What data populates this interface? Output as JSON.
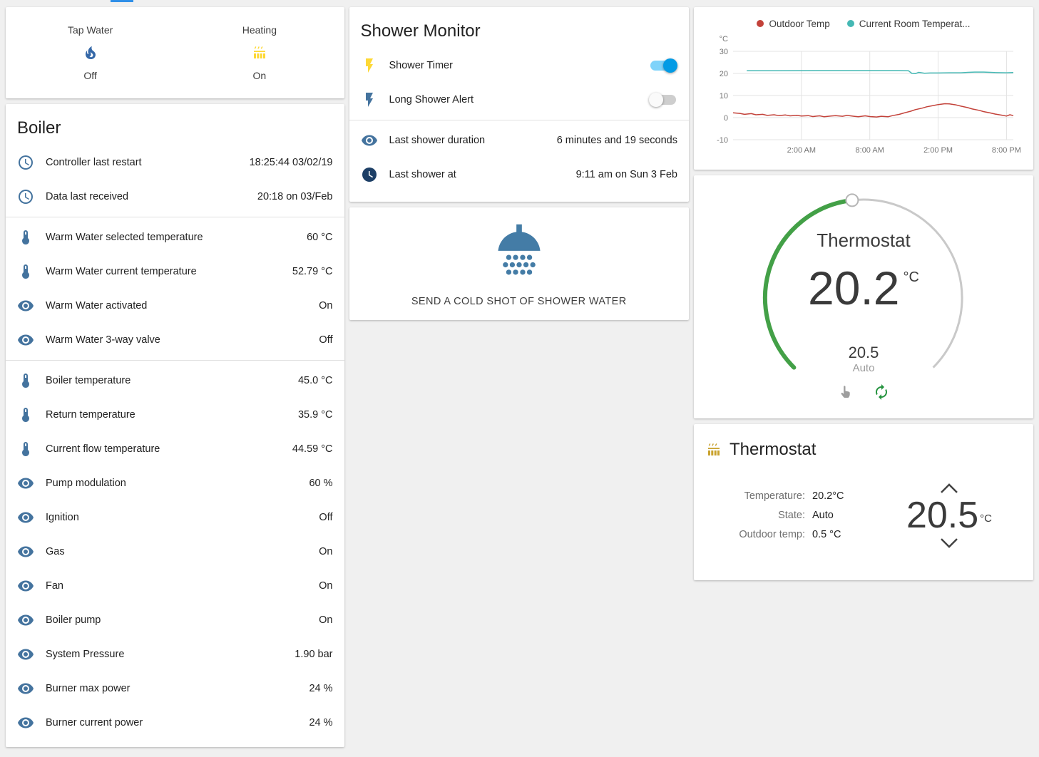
{
  "glance_card": {
    "items": [
      {
        "label": "Tap Water",
        "state": "Off"
      },
      {
        "label": "Heating",
        "state": "On"
      }
    ]
  },
  "boiler": {
    "title": "Boiler",
    "rows": [
      {
        "label": "Controller last restart",
        "value": "18:25:44 03/02/19"
      },
      {
        "label": "Data last received",
        "value": "20:18 on 03/Feb"
      },
      {
        "label": "Warm Water selected temperature",
        "value": "60 °C"
      },
      {
        "label": "Warm Water current temperature",
        "value": "52.79 °C"
      },
      {
        "label": "Warm Water activated",
        "value": "On"
      },
      {
        "label": "Warm Water 3-way valve",
        "value": "Off"
      },
      {
        "label": "Boiler temperature",
        "value": "45.0 °C"
      },
      {
        "label": "Return temperature",
        "value": "35.9 °C"
      },
      {
        "label": "Current flow temperature",
        "value": "44.59 °C"
      },
      {
        "label": "Pump modulation",
        "value": "60 %"
      },
      {
        "label": "Ignition",
        "value": "Off"
      },
      {
        "label": "Gas",
        "value": "On"
      },
      {
        "label": "Fan",
        "value": "On"
      },
      {
        "label": "Boiler pump",
        "value": "On"
      },
      {
        "label": "System Pressure",
        "value": "1.90 bar"
      },
      {
        "label": "Burner max power",
        "value": "24 %"
      },
      {
        "label": "Burner current power",
        "value": "24 %"
      }
    ]
  },
  "shower_monitor": {
    "title": "Shower Monitor",
    "toggle_rows": [
      {
        "label": "Shower Timer",
        "state": "on"
      },
      {
        "label": "Long Shower Alert",
        "state": "off"
      }
    ],
    "info_rows": [
      {
        "label": "Last shower duration",
        "value": "6 minutes and 19 seconds"
      },
      {
        "label": "Last shower at",
        "value": "9:11 am on Sun 3 Feb"
      }
    ]
  },
  "shower_action": {
    "label": "SEND A COLD SHOT OF SHOWER WATER"
  },
  "chart_data": {
    "type": "line",
    "title": "",
    "ylabel": "°C",
    "y_min": -10,
    "y_max": 30,
    "y_ticks": [
      30,
      20,
      10,
      0,
      -10
    ],
    "x_range": [
      0,
      24.6
    ],
    "x_ticks": [
      {
        "h": 6,
        "label": "2:00 AM"
      },
      {
        "h": 12,
        "label": "8:00 AM"
      },
      {
        "h": 18,
        "label": "2:00 PM"
      },
      {
        "h": 24,
        "label": "8:00 PM"
      }
    ],
    "grid": true,
    "legend_position": "top",
    "series": [
      {
        "name": "Outdoor Temp",
        "color": "#c3423a",
        "points": [
          [
            0,
            2.2
          ],
          [
            0.6,
            1.9
          ],
          [
            1,
            1.5
          ],
          [
            1.6,
            1.8
          ],
          [
            2,
            1.3
          ],
          [
            2.6,
            1.5
          ],
          [
            3,
            1.0
          ],
          [
            3.6,
            1.3
          ],
          [
            4,
            0.9
          ],
          [
            4.6,
            1.2
          ],
          [
            5,
            0.8
          ],
          [
            5.6,
            1.0
          ],
          [
            6,
            0.7
          ],
          [
            6.6,
            0.9
          ],
          [
            7,
            0.5
          ],
          [
            7.6,
            0.8
          ],
          [
            8,
            0.4
          ],
          [
            8.6,
            0.7
          ],
          [
            9,
            0.9
          ],
          [
            9.6,
            0.6
          ],
          [
            10,
            1.0
          ],
          [
            10.6,
            0.6
          ],
          [
            11,
            0.4
          ],
          [
            11.6,
            0.8
          ],
          [
            12,
            0.5
          ],
          [
            12.6,
            0.3
          ],
          [
            13,
            0.6
          ],
          [
            13.6,
            0.4
          ],
          [
            14,
            0.9
          ],
          [
            14.6,
            1.5
          ],
          [
            15,
            2.1
          ],
          [
            15.6,
            2.9
          ],
          [
            16,
            3.6
          ],
          [
            16.6,
            4.3
          ],
          [
            17,
            4.9
          ],
          [
            17.6,
            5.5
          ],
          [
            18,
            5.9
          ],
          [
            18.6,
            6.3
          ],
          [
            19,
            6.2
          ],
          [
            19.6,
            5.7
          ],
          [
            20,
            5.2
          ],
          [
            20.6,
            4.5
          ],
          [
            21,
            3.9
          ],
          [
            21.6,
            3.3
          ],
          [
            22,
            2.7
          ],
          [
            22.6,
            2.1
          ],
          [
            23,
            1.6
          ],
          [
            23.6,
            1.1
          ],
          [
            24,
            0.7
          ],
          [
            24.3,
            1.3
          ],
          [
            24.6,
            0.9
          ]
        ]
      },
      {
        "name": "Current Room Temperat...",
        "color": "#44b8b4",
        "points": [
          [
            1.2,
            21.2
          ],
          [
            4,
            21.2
          ],
          [
            8,
            21.3
          ],
          [
            12,
            21.3
          ],
          [
            14.5,
            21.3
          ],
          [
            15.4,
            21.2
          ],
          [
            15.7,
            20.0
          ],
          [
            16,
            19.9
          ],
          [
            16.3,
            20.5
          ],
          [
            16.8,
            20.1
          ],
          [
            17.3,
            20.2
          ],
          [
            18,
            20.2
          ],
          [
            19,
            20.3
          ],
          [
            20,
            20.3
          ],
          [
            20.6,
            20.5
          ],
          [
            21.2,
            20.6
          ],
          [
            22,
            20.6
          ],
          [
            23,
            20.4
          ],
          [
            24,
            20.3
          ],
          [
            24.6,
            20.4
          ]
        ]
      }
    ]
  },
  "gauge": {
    "title": "Thermostat",
    "current": "20.2",
    "unit": "°C",
    "target": "20.5",
    "mode": "Auto"
  },
  "thermostat_card": {
    "title": "Thermostat",
    "rows": [
      {
        "label": "Temperature:",
        "value": "20.2°C"
      },
      {
        "label": "State:",
        "value": "Auto"
      },
      {
        "label": "Outdoor temp:",
        "value": "0.5 °C"
      }
    ],
    "target": "20.5",
    "unit": "°C"
  }
}
